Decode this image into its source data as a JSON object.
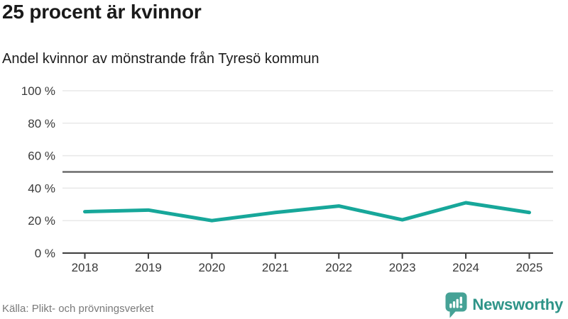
{
  "header": {
    "title": "25 procent är kvinnor",
    "subtitle": "Andel kvinnor av mönstrande från Tyresö kommun"
  },
  "chart_data": {
    "type": "line",
    "title": "25 procent är kvinnor",
    "subtitle": "Andel kvinnor av mönstrande från Tyresö kommun",
    "x": [
      "2018",
      "2019",
      "2020",
      "2021",
      "2022",
      "2023",
      "2024",
      "2025"
    ],
    "series": [
      {
        "name": "Andel kvinnor av mönstrande",
        "values": [
          25.5,
          26.5,
          20,
          25,
          29,
          20.5,
          31,
          25
        ]
      }
    ],
    "reference_line_value": 50,
    "ylim": [
      0,
      100
    ],
    "yticks": [
      0,
      20,
      40,
      60,
      80,
      100
    ],
    "ytick_suffix": " %",
    "grid": true,
    "legend": "none",
    "colors": {
      "line": "#17a79a",
      "reference": "#6b6b6b",
      "grid": "#e8e8e8",
      "axis": "#3d3d3d"
    }
  },
  "footer": {
    "source": "Källa: Plikt- och prövningsverket",
    "brand": "Newsworthy",
    "brand_color": "#2e9488",
    "brand_icon_color": "#46a296"
  }
}
